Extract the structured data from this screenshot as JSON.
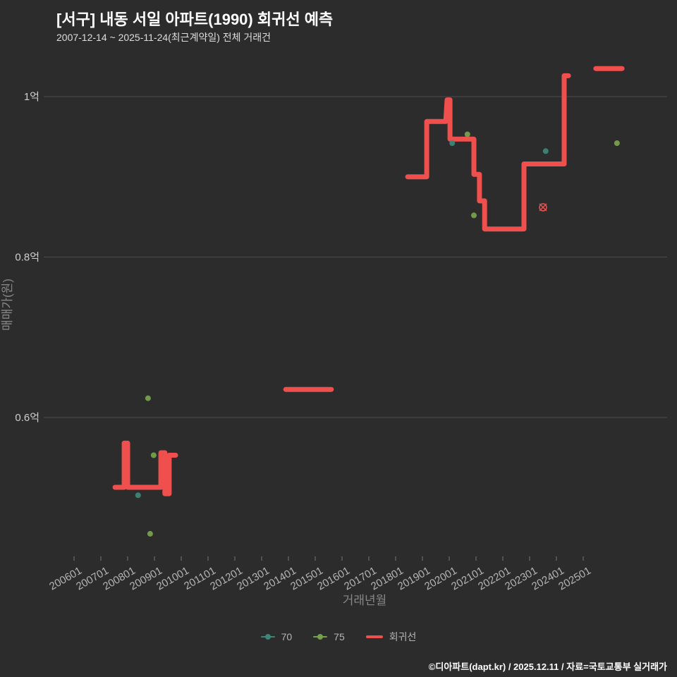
{
  "page": {
    "background": "#2c2c2c"
  },
  "header": {
    "title": "[서구] 내동 서일 아파트(1990) 회귀선 예측",
    "subtitle": "2007-12-14 ~ 2025-11-24(최근계약일) 전체 거래건"
  },
  "footer": {
    "credit": "©디아파트(dapt.kr) / 2025.12.11 / 자료=국토교통부 실거래가"
  },
  "chart_data": {
    "type": "line",
    "title": "[서구] 내동 서일 아파트(1990) 회귀선 예측",
    "subtitle": "2007-12-14 ~ 2025-11-24(최근계약일) 전체 거래건",
    "xlabel": "거래년월",
    "ylabel": "매매가(원)",
    "x_ticks": [
      "200601",
      "200701",
      "200801",
      "200901",
      "201001",
      "201101",
      "201201",
      "201301",
      "201401",
      "201501",
      "201601",
      "201701",
      "201801",
      "201901",
      "202001",
      "202101",
      "202201",
      "202301",
      "202401",
      "202501"
    ],
    "y_ticks": [
      {
        "label": "1억",
        "value": 1.0
      },
      {
        "label": "0.8억",
        "value": 0.8
      },
      {
        "label": "0.6억",
        "value": 0.6
      }
    ],
    "x_domain_years": [
      2004.8,
      2028.2
    ],
    "y_domain_eok": [
      0.426,
      1.046
    ],
    "grid": "horizontal",
    "legend_position": "bottom-center",
    "series": [
      {
        "name": "70",
        "type": "scatter",
        "color": "#3d8578",
        "points": [
          [
            2008.39,
            0.503
          ],
          [
            2020.11,
            0.942
          ],
          [
            2023.6,
            0.932
          ]
        ]
      },
      {
        "name": "75",
        "type": "scatter",
        "color": "#76a04a",
        "points": [
          [
            2008.76,
            0.624
          ],
          [
            2008.97,
            0.553
          ],
          [
            2008.84,
            0.455
          ],
          [
            2020.68,
            0.953
          ],
          [
            2020.92,
            0.852
          ],
          [
            2026.26,
            0.942
          ]
        ]
      },
      {
        "name": "회귀선",
        "type": "step-line",
        "color": "#f0504d",
        "width": 7,
        "segments": [
          [
            [
              2007.53,
              0.513
            ],
            [
              2007.87,
              0.513
            ],
            [
              2007.87,
              0.568
            ],
            [
              2008.0,
              0.568
            ],
            [
              2008.0,
              0.513
            ],
            [
              2009.24,
              0.513
            ],
            [
              2009.24,
              0.556
            ],
            [
              2009.39,
              0.556
            ],
            [
              2009.39,
              0.505
            ],
            [
              2009.55,
              0.505
            ],
            [
              2009.55,
              0.553
            ],
            [
              2009.79,
              0.553
            ]
          ],
          [
            [
              2013.9,
              0.635
            ],
            [
              2015.6,
              0.635
            ]
          ],
          [
            [
              2018.45,
              0.9
            ],
            [
              2019.16,
              0.9
            ],
            [
              2019.16,
              0.969
            ],
            [
              2019.87,
              0.969
            ],
            [
              2019.92,
              0.996
            ],
            [
              2020.03,
              0.996
            ],
            [
              2020.03,
              0.947
            ],
            [
              2020.92,
              0.947
            ],
            [
              2020.92,
              0.903
            ],
            [
              2021.13,
              0.903
            ],
            [
              2021.13,
              0.87
            ],
            [
              2021.32,
              0.87
            ],
            [
              2021.32,
              0.835
            ],
            [
              2022.79,
              0.835
            ],
            [
              2022.79,
              0.916
            ],
            [
              2024.29,
              0.916
            ],
            [
              2024.29,
              1.026
            ],
            [
              2024.45,
              1.026
            ]
          ],
          [
            [
              2025.47,
              1.035
            ],
            [
              2026.45,
              1.035
            ]
          ]
        ]
      }
    ],
    "marker": {
      "shape": "circle-x",
      "color": "#e0514e",
      "x": 2023.5,
      "y": 0.862
    },
    "legend": [
      {
        "label": "70",
        "color": "#3d8578",
        "marker": "dot-line"
      },
      {
        "label": "75",
        "color": "#76a04a",
        "marker": "dot-line"
      },
      {
        "label": "회귀선",
        "color": "#f0504d",
        "marker": "line"
      }
    ]
  }
}
